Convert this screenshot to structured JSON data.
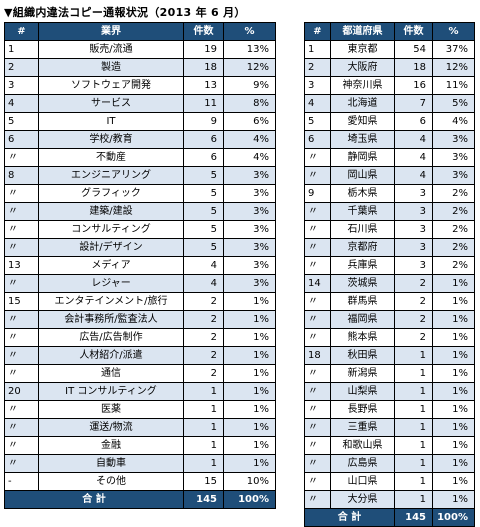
{
  "title": "▼組織内違法コピー通報状況（2013 年 6 月）",
  "industry_table": {
    "headers": [
      "#",
      "業界",
      "件数",
      "%"
    ],
    "rows": [
      [
        "1",
        "販売/流通",
        "19",
        "13%"
      ],
      [
        "2",
        "製造",
        "18",
        "12%"
      ],
      [
        "3",
        "ソフトウェア開発",
        "13",
        "9%"
      ],
      [
        "4",
        "サービス",
        "11",
        "8%"
      ],
      [
        "5",
        "IT",
        "9",
        "6%"
      ],
      [
        "6",
        "学校/教育",
        "6",
        "4%"
      ],
      [
        "〃",
        "不動産",
        "6",
        "4%"
      ],
      [
        "8",
        "エンジニアリング",
        "5",
        "3%"
      ],
      [
        "〃",
        "グラフィック",
        "5",
        "3%"
      ],
      [
        "〃",
        "建築/建設",
        "5",
        "3%"
      ],
      [
        "〃",
        "コンサルティング",
        "5",
        "3%"
      ],
      [
        "〃",
        "設計/デザイン",
        "5",
        "3%"
      ],
      [
        "13",
        "メディア",
        "4",
        "3%"
      ],
      [
        "〃",
        "レジャー",
        "4",
        "3%"
      ],
      [
        "15",
        "エンタテインメント/旅行",
        "2",
        "1%"
      ],
      [
        "〃",
        "会計事務所/監査法人",
        "2",
        "1%"
      ],
      [
        "〃",
        "広告/広告制作",
        "2",
        "1%"
      ],
      [
        "〃",
        "人材紹介/派遣",
        "2",
        "1%"
      ],
      [
        "〃",
        "通信",
        "2",
        "1%"
      ],
      [
        "20",
        "IT コンサルティング",
        "1",
        "1%"
      ],
      [
        "〃",
        "医薬",
        "1",
        "1%"
      ],
      [
        "〃",
        "運送/物流",
        "1",
        "1%"
      ],
      [
        "〃",
        "金融",
        "1",
        "1%"
      ],
      [
        "〃",
        "自動車",
        "1",
        "1%"
      ],
      [
        "-",
        "その他",
        "15",
        "10%"
      ]
    ],
    "total": {
      "label": "合 計",
      "count": "145",
      "pct": "100%"
    }
  },
  "prefecture_table": {
    "headers": [
      "#",
      "都道府県",
      "件数",
      "%"
    ],
    "rows": [
      [
        "1",
        "東京都",
        "54",
        "37%"
      ],
      [
        "2",
        "大阪府",
        "18",
        "12%"
      ],
      [
        "3",
        "神奈川県",
        "16",
        "11%"
      ],
      [
        "4",
        "北海道",
        "7",
        "5%"
      ],
      [
        "5",
        "愛知県",
        "6",
        "4%"
      ],
      [
        "6",
        "埼玉県",
        "4",
        "3%"
      ],
      [
        "〃",
        "静岡県",
        "4",
        "3%"
      ],
      [
        "〃",
        "岡山県",
        "4",
        "3%"
      ],
      [
        "9",
        "栃木県",
        "3",
        "2%"
      ],
      [
        "〃",
        "千葉県",
        "3",
        "2%"
      ],
      [
        "〃",
        "石川県",
        "3",
        "2%"
      ],
      [
        "〃",
        "京都府",
        "3",
        "2%"
      ],
      [
        "〃",
        "兵庫県",
        "3",
        "2%"
      ],
      [
        "14",
        "茨城県",
        "2",
        "1%"
      ],
      [
        "〃",
        "群馬県",
        "2",
        "1%"
      ],
      [
        "〃",
        "福岡県",
        "2",
        "1%"
      ],
      [
        "〃",
        "熊本県",
        "2",
        "1%"
      ],
      [
        "18",
        "秋田県",
        "1",
        "1%"
      ],
      [
        "〃",
        "新潟県",
        "1",
        "1%"
      ],
      [
        "〃",
        "山梨県",
        "1",
        "1%"
      ],
      [
        "〃",
        "長野県",
        "1",
        "1%"
      ],
      [
        "〃",
        "三重県",
        "1",
        "1%"
      ],
      [
        "〃",
        "和歌山県",
        "1",
        "1%"
      ],
      [
        "〃",
        "広島県",
        "1",
        "1%"
      ],
      [
        "〃",
        "山口県",
        "1",
        "1%"
      ],
      [
        "〃",
        "大分県",
        "1",
        "1%"
      ]
    ],
    "total": {
      "label": "合 計",
      "count": "145",
      "pct": "100%"
    }
  }
}
